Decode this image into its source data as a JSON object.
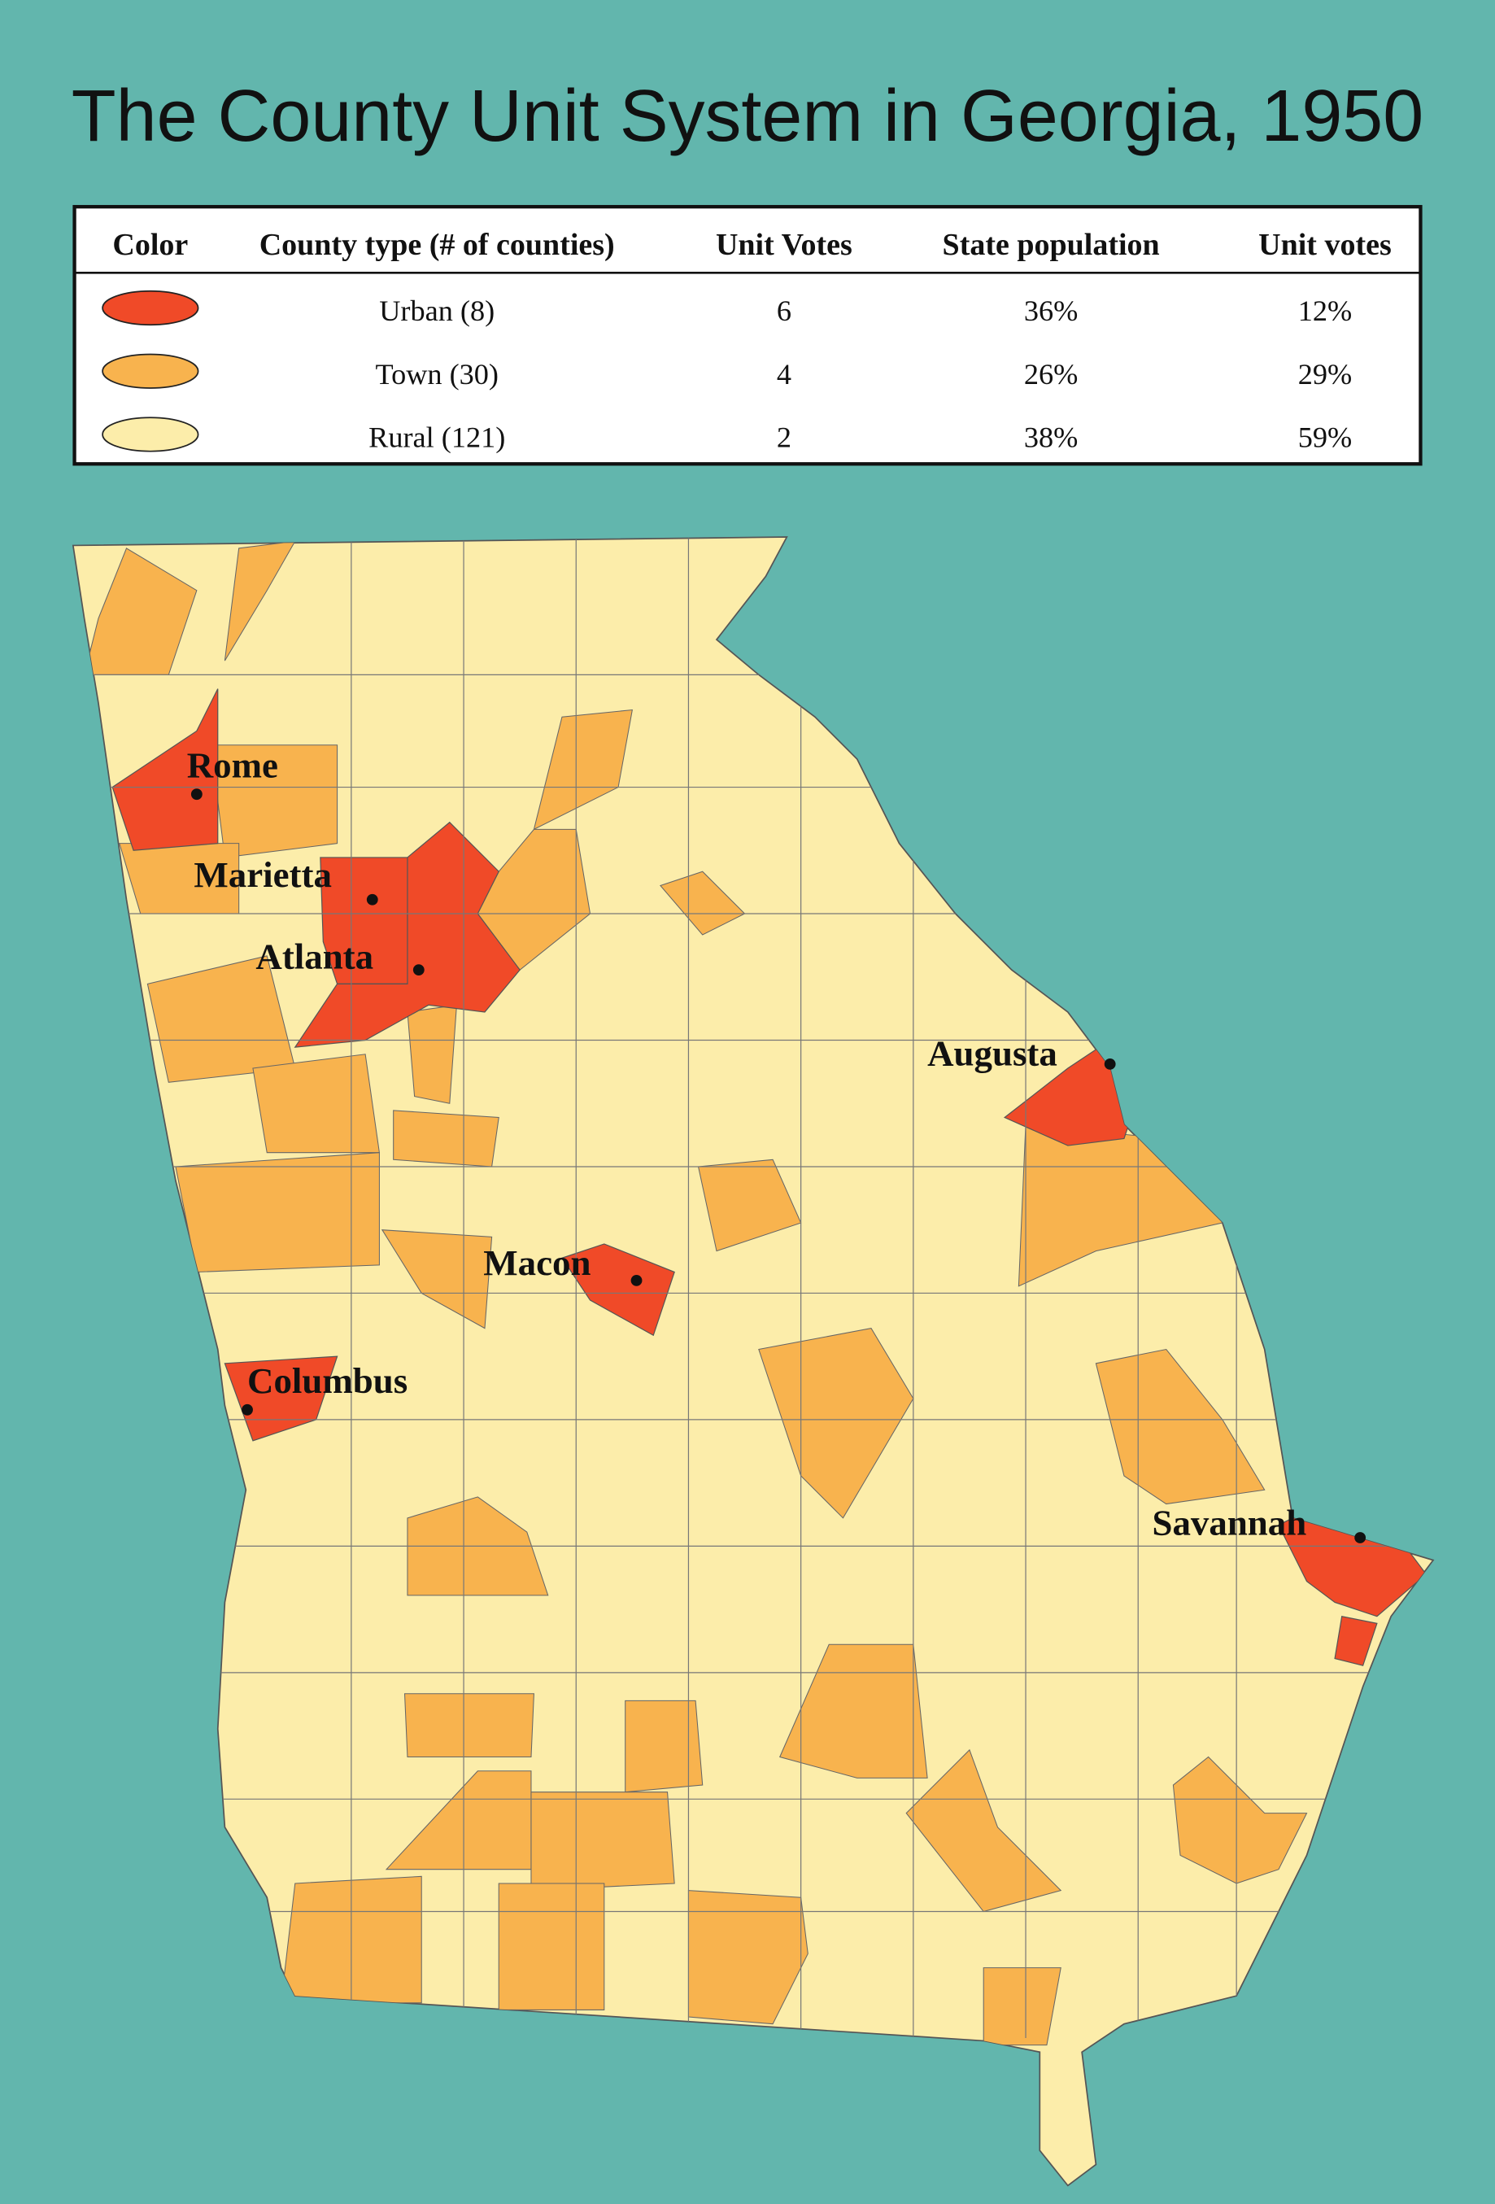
{
  "title": "The County Unit System in Georgia, 1950",
  "table": {
    "header": [
      "Color",
      "County type (# of counties)",
      "Unit Votes",
      "State population",
      "Unit votes"
    ],
    "rows": [
      {
        "color": "#f04a28",
        "type": "Urban (8)",
        "unit_votes": "6",
        "state_population": "36%",
        "unit_votes_share": "12%"
      },
      {
        "color": "#f8b34e",
        "type": "Town (30)",
        "unit_votes": "4",
        "state_population": "26%",
        "unit_votes_share": "29%"
      },
      {
        "color": "#fcedaa",
        "type": "Rural (121)",
        "unit_votes": "2",
        "state_population": "38%",
        "unit_votes_share": "59%"
      }
    ]
  },
  "map": {
    "cities": [
      "Rome",
      "Marietta",
      "Atlanta",
      "Augusta",
      "Macon",
      "Columbus",
      "Savannah"
    ]
  }
}
